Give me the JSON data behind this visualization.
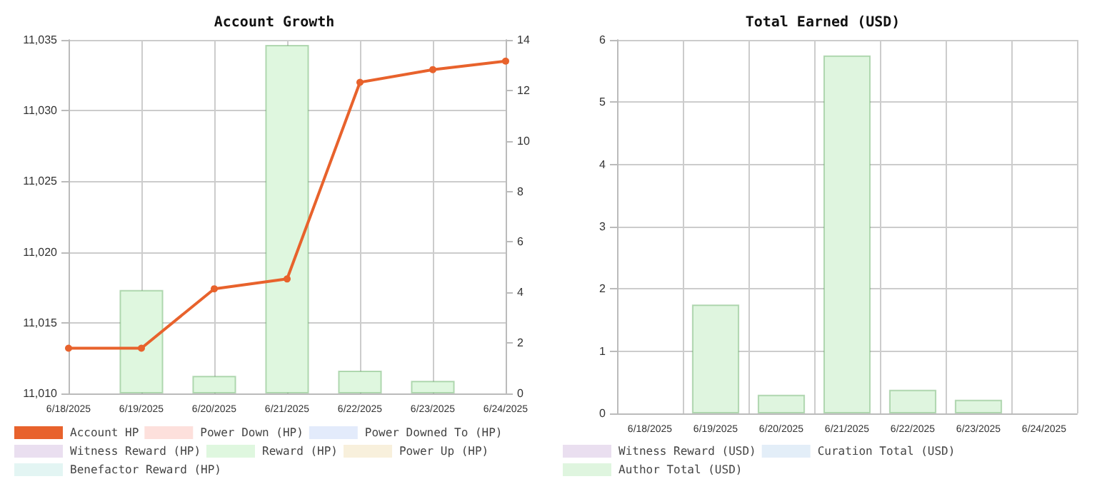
{
  "chart_data": [
    {
      "type": "bar",
      "title": "Account Growth",
      "categories": [
        "6/18/2025",
        "6/19/2025",
        "6/20/2025",
        "6/21/2025",
        "6/22/2025",
        "6/23/2025",
        "6/24/2025"
      ],
      "series": [
        {
          "name": "Account HP",
          "type": "line",
          "color": "#e8622c",
          "values": [
            11013.2,
            11013.2,
            11017.4,
            11018.1,
            11032.0,
            11032.9,
            11033.5
          ]
        },
        {
          "name": "Power Down (HP)",
          "axis": "y2",
          "color": "#fde0dc",
          "values": [
            null,
            null,
            null,
            null,
            null,
            null,
            null
          ]
        },
        {
          "name": "Power Downed To (HP)",
          "axis": "y2",
          "color": "#e3ebfb",
          "values": [
            null,
            null,
            null,
            null,
            null,
            null,
            null
          ]
        },
        {
          "name": "Witness Reward (HP)",
          "axis": "y2",
          "color": "#eadff0",
          "values": [
            null,
            null,
            null,
            null,
            null,
            null,
            null
          ]
        },
        {
          "name": "Reward (HP)",
          "axis": "y2",
          "color": "#dff7df",
          "values": [
            null,
            4.1,
            0.7,
            13.8,
            0.9,
            0.5,
            null
          ]
        },
        {
          "name": "Power Up (HP)",
          "axis": "y2",
          "color": "#f8f0dc",
          "values": [
            null,
            null,
            null,
            null,
            null,
            null,
            null
          ]
        },
        {
          "name": "Benefactor Reward (HP)",
          "axis": "y2",
          "color": "#e3f5f3",
          "values": [
            null,
            null,
            null,
            null,
            null,
            null,
            null
          ]
        }
      ],
      "ylim": [
        11010,
        11035
      ],
      "yticks": [
        {
          "value": 11010,
          "label": "11,010"
        },
        {
          "value": 11015,
          "label": "11,015"
        },
        {
          "value": 11020,
          "label": "11,020"
        },
        {
          "value": 11025,
          "label": "11,025"
        },
        {
          "value": 11030,
          "label": "11,030"
        },
        {
          "value": 11035,
          "label": "11,035"
        }
      ],
      "y2lim": [
        0,
        14
      ],
      "y2ticks": [
        0,
        2,
        4,
        6,
        8,
        10,
        12,
        14
      ],
      "grid": true,
      "legend": "bottom",
      "marker": "circle",
      "line_style": "solid"
    },
    {
      "type": "bar",
      "title": "Total Earned (USD)",
      "categories": [
        "6/18/2025",
        "6/19/2025",
        "6/20/2025",
        "6/21/2025",
        "6/22/2025",
        "6/23/2025",
        "6/24/2025"
      ],
      "series": [
        {
          "name": "Witness Reward (USD)",
          "color": "#eadff0",
          "values": [
            null,
            null,
            null,
            null,
            null,
            null,
            null
          ]
        },
        {
          "name": "Curation Total (USD)",
          "color": "#e3eef8",
          "values": [
            null,
            null,
            null,
            null,
            null,
            null,
            null
          ]
        },
        {
          "name": "Author Total (USD)",
          "color": "#dff5df",
          "values": [
            0,
            1.75,
            0.3,
            5.75,
            0.38,
            0.22,
            0
          ]
        }
      ],
      "ylim": [
        0,
        6
      ],
      "yticks": [
        0,
        1,
        2,
        3,
        4,
        5,
        6
      ],
      "grid": true,
      "legend": "bottom"
    }
  ]
}
